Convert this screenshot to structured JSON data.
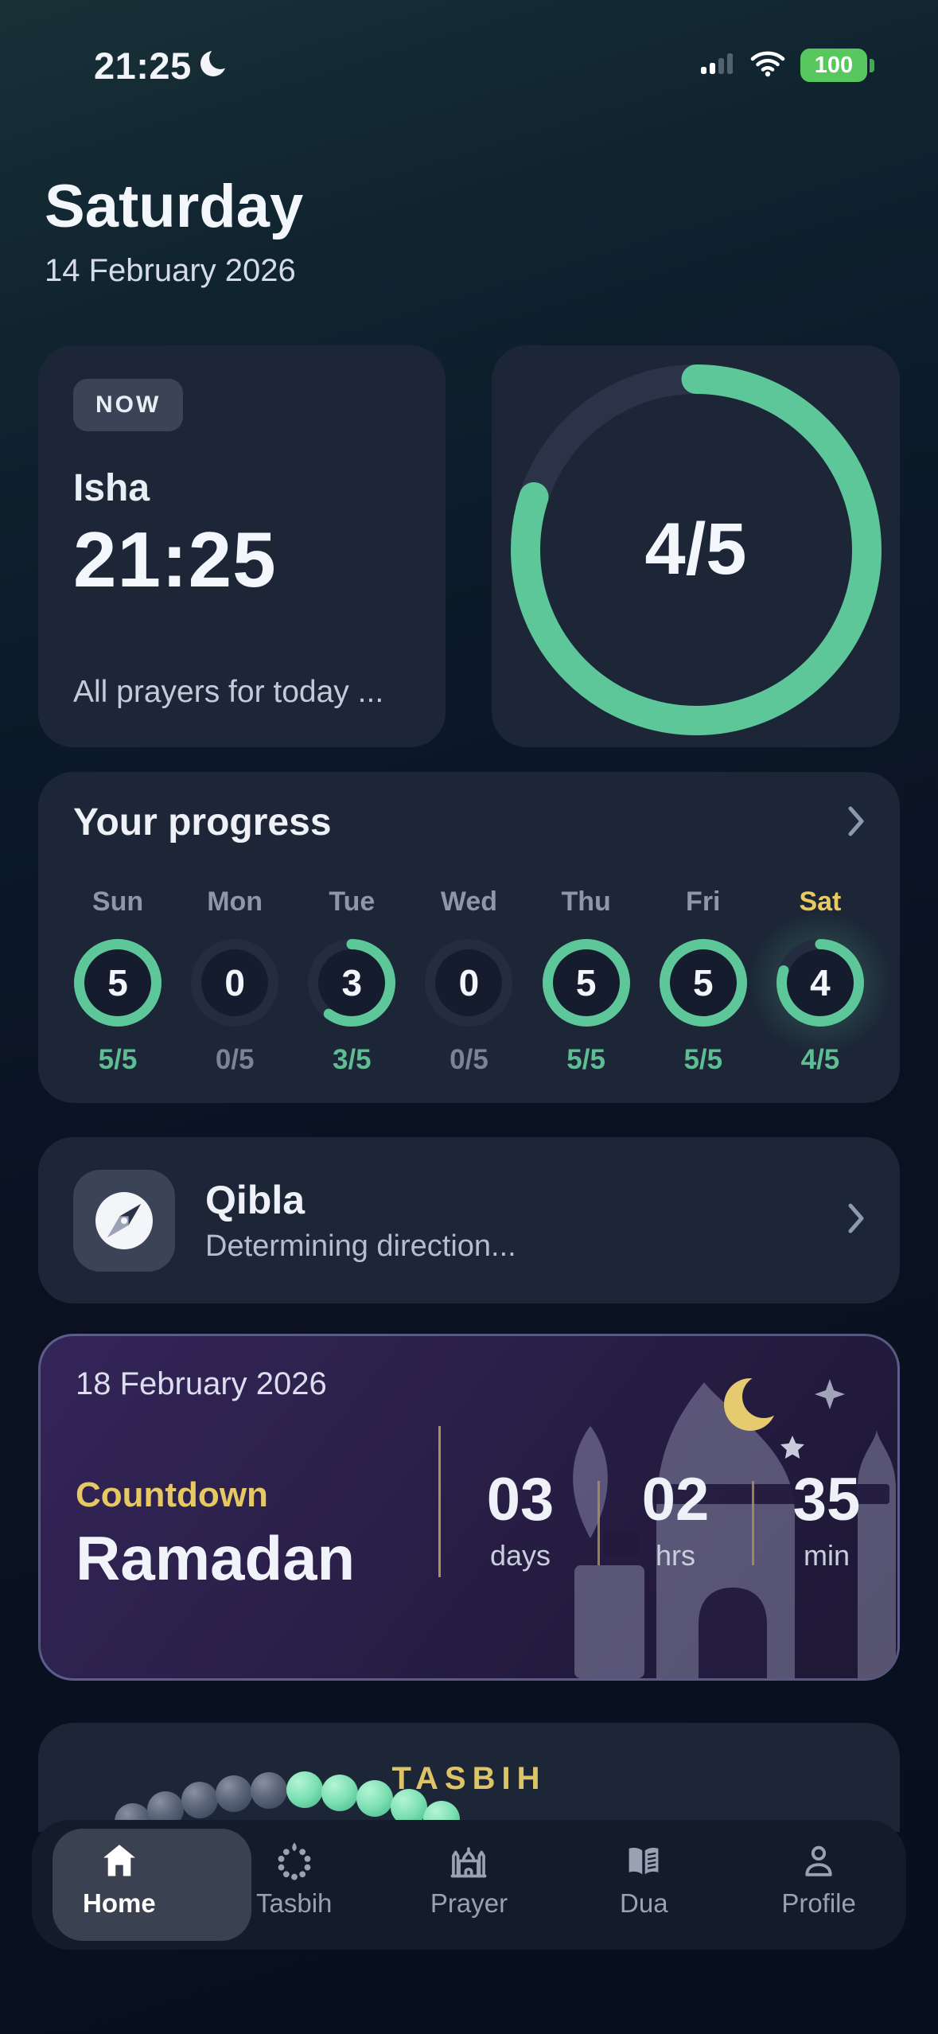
{
  "status_bar": {
    "time": "21:25",
    "battery": "100"
  },
  "header": {
    "day": "Saturday",
    "date": "14 February 2026"
  },
  "prayer_card": {
    "badge": "NOW",
    "prayer_name": "Isha",
    "prayer_time": "21:25",
    "subtitle": "All prayers for today ..."
  },
  "ring_card": {
    "value": "4/5",
    "percent": 80
  },
  "progress_card": {
    "title": "Your progress",
    "days": [
      {
        "label": "Sun",
        "count": "5",
        "fraction": "5/5",
        "pct": 100,
        "active": false
      },
      {
        "label": "Mon",
        "count": "0",
        "fraction": "0/5",
        "pct": 0,
        "active": false
      },
      {
        "label": "Tue",
        "count": "3",
        "fraction": "3/5",
        "pct": 60,
        "active": false
      },
      {
        "label": "Wed",
        "count": "0",
        "fraction": "0/5",
        "pct": 0,
        "active": false
      },
      {
        "label": "Thu",
        "count": "5",
        "fraction": "5/5",
        "pct": 100,
        "active": false
      },
      {
        "label": "Fri",
        "count": "5",
        "fraction": "5/5",
        "pct": 100,
        "active": false
      },
      {
        "label": "Sat",
        "count": "4",
        "fraction": "4/5",
        "pct": 80,
        "active": true
      }
    ]
  },
  "qibla_card": {
    "title": "Qibla",
    "subtitle": "Determining direction..."
  },
  "ramadan_card": {
    "date": "18 February 2026",
    "label": "Countdown",
    "title": "Ramadan",
    "units": [
      {
        "value": "03",
        "unit": "days"
      },
      {
        "value": "02",
        "unit": "hrs"
      },
      {
        "value": "35",
        "unit": "min"
      }
    ]
  },
  "tasbih_card": {
    "title": "TASBIH",
    "beads": {
      "gray": 5,
      "green": 5
    }
  },
  "nav": {
    "items": [
      {
        "label": "Home",
        "icon": "home-icon",
        "active": true
      },
      {
        "label": "Tasbih",
        "icon": "tasbih-icon",
        "active": false
      },
      {
        "label": "Prayer",
        "icon": "prayer-icon",
        "active": false
      },
      {
        "label": "Dua",
        "icon": "dua-icon",
        "active": false
      },
      {
        "label": "Profile",
        "icon": "profile-icon",
        "active": false
      }
    ]
  },
  "colors": {
    "accent_green": "#5ec79a",
    "ring_track": "#2a3347",
    "ring_inner": "#141c2d",
    "gold": "#e6c963",
    "battery_green": "#57c75e"
  }
}
